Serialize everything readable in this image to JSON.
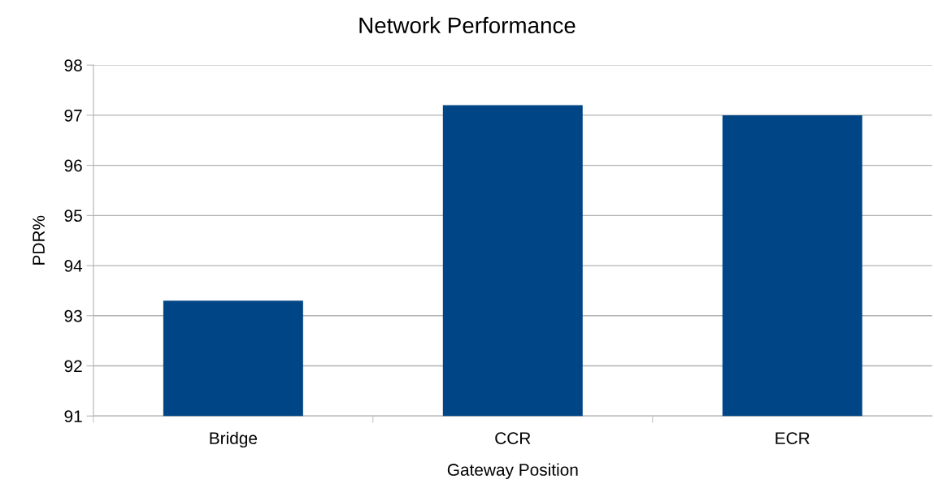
{
  "chart_data": {
    "type": "bar",
    "title": "Network Performance",
    "xlabel": "Gateway Position",
    "ylabel": "PDR%",
    "categories": [
      "Bridge",
      "CCR",
      "ECR"
    ],
    "values": [
      93.3,
      97.2,
      97.0
    ],
    "color": "#004586",
    "ylim": [
      91,
      98
    ],
    "yticks": [
      91,
      92,
      93,
      94,
      95,
      96,
      97,
      98
    ],
    "grid": "y",
    "legend": false
  }
}
